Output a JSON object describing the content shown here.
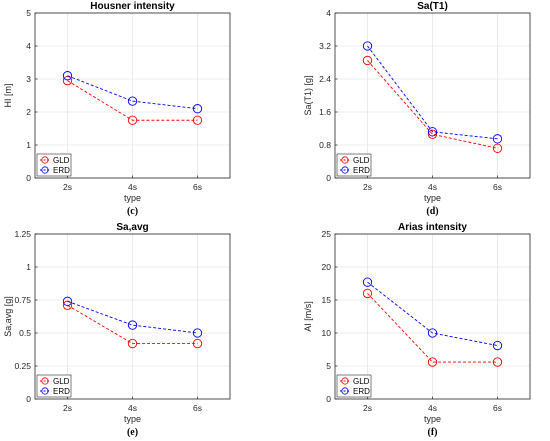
{
  "chart_data": [
    {
      "type": "line",
      "title": "Housner intensity",
      "xlabel": "type",
      "ylabel": "HI [m]",
      "panel_label": "(c)",
      "categories": [
        "2s",
        "4s",
        "6s"
      ],
      "ylim": [
        0,
        5
      ],
      "yticks": [
        "0",
        "1",
        "2",
        "3",
        "4",
        "5"
      ],
      "grid": true,
      "legend_position": "bottom-left",
      "series": [
        {
          "name": "GLD",
          "color": "#ff0000",
          "values": [
            2.95,
            1.75,
            1.75
          ]
        },
        {
          "name": "ERD",
          "color": "#0000ff",
          "values": [
            3.1,
            2.33,
            2.1
          ]
        }
      ]
    },
    {
      "type": "line",
      "title": "Sa(T1)",
      "xlabel": "type",
      "ylabel": "Sa(T1) [g]",
      "panel_label": "(d)",
      "categories": [
        "2s",
        "4s",
        "6s"
      ],
      "ylim": [
        0,
        4
      ],
      "yticks": [
        "0",
        "0.8",
        "1.6",
        "2.4",
        "3.2",
        "4"
      ],
      "grid": true,
      "legend_position": "bottom-left",
      "series": [
        {
          "name": "GLD",
          "color": "#ff0000",
          "values": [
            2.85,
            1.06,
            0.72
          ]
        },
        {
          "name": "ERD",
          "color": "#0000ff",
          "values": [
            3.2,
            1.12,
            0.95
          ]
        }
      ]
    },
    {
      "type": "line",
      "title": "Sa,avg",
      "xlabel": "type",
      "ylabel": "Sa,avg [g]",
      "panel_label": "(e)",
      "categories": [
        "2s",
        "4s",
        "6s"
      ],
      "ylim": [
        0,
        1.25
      ],
      "yticks": [
        "0",
        "0.25",
        "0.5",
        "0.75",
        "1",
        "1.25"
      ],
      "grid": true,
      "legend_position": "bottom-left",
      "series": [
        {
          "name": "GLD",
          "color": "#ff0000",
          "values": [
            0.71,
            0.42,
            0.42
          ]
        },
        {
          "name": "ERD",
          "color": "#0000ff",
          "values": [
            0.74,
            0.56,
            0.5
          ]
        }
      ]
    },
    {
      "type": "line",
      "title": "Arias intensity",
      "xlabel": "type",
      "ylabel": "AI [m/s]",
      "panel_label": "(f)",
      "categories": [
        "2s",
        "4s",
        "6s"
      ],
      "ylim": [
        0,
        25
      ],
      "yticks": [
        "0",
        "5",
        "10",
        "15",
        "20",
        "25"
      ],
      "grid": true,
      "legend_position": "bottom-left",
      "series": [
        {
          "name": "GLD",
          "color": "#ff0000",
          "values": [
            16.0,
            5.6,
            5.6
          ]
        },
        {
          "name": "ERD",
          "color": "#0000ff",
          "values": [
            17.7,
            10.0,
            8.1
          ]
        }
      ]
    }
  ]
}
